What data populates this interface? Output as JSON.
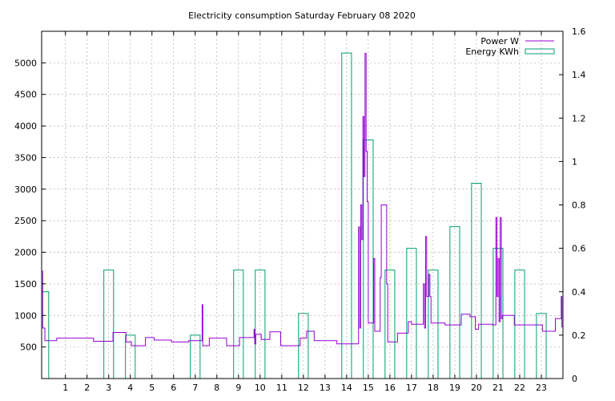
{
  "chart_data": {
    "type": "line",
    "title": "Electricity consumption Saturday February 08 2020",
    "xlim": [
      -0.1,
      24
    ],
    "x_ticks": [
      1,
      2,
      3,
      4,
      5,
      6,
      7,
      8,
      9,
      10,
      11,
      12,
      13,
      14,
      15,
      16,
      17,
      18,
      19,
      20,
      21,
      22,
      23
    ],
    "y1": {
      "lim": [
        0,
        5500
      ],
      "ticks": [
        500,
        1000,
        1500,
        2000,
        2500,
        3000,
        3500,
        4000,
        4500,
        5000
      ]
    },
    "y2": {
      "lim": [
        0,
        1.6
      ],
      "ticks": [
        "0",
        "0.2",
        "0.4",
        "0.6",
        "0.8",
        "1",
        "1.2",
        "1.4",
        "1.6"
      ]
    },
    "grid": true,
    "legend": "top-right",
    "series": [
      {
        "name": "Power W",
        "axis": "y1",
        "color": "#9400d3",
        "style": "steps",
        "points": [
          [
            -0.1,
            1700
          ],
          [
            -0.05,
            800
          ],
          [
            0,
            800
          ],
          [
            0.05,
            600
          ],
          [
            0.5,
            600
          ],
          [
            0.6,
            640
          ],
          [
            2.2,
            640
          ],
          [
            2.3,
            590
          ],
          [
            3.1,
            590
          ],
          [
            3.2,
            730
          ],
          [
            3.7,
            730
          ],
          [
            3.8,
            580
          ],
          [
            4.0,
            580
          ],
          [
            4.05,
            520
          ],
          [
            4.6,
            520
          ],
          [
            4.7,
            650
          ],
          [
            5.0,
            650
          ],
          [
            5.1,
            610
          ],
          [
            5.8,
            610
          ],
          [
            5.9,
            580
          ],
          [
            6.6,
            580
          ],
          [
            6.7,
            600
          ],
          [
            7.3,
            600
          ],
          [
            7.32,
            1170
          ],
          [
            7.35,
            520
          ],
          [
            7.6,
            520
          ],
          [
            7.65,
            640
          ],
          [
            8.4,
            640
          ],
          [
            8.45,
            520
          ],
          [
            9.0,
            520
          ],
          [
            9.05,
            650
          ],
          [
            9.7,
            650
          ],
          [
            9.72,
            780
          ],
          [
            9.75,
            550
          ],
          [
            9.8,
            700
          ],
          [
            10.0,
            700
          ],
          [
            10.05,
            620
          ],
          [
            10.4,
            620
          ],
          [
            10.45,
            740
          ],
          [
            10.9,
            740
          ],
          [
            10.95,
            520
          ],
          [
            11.8,
            520
          ],
          [
            11.85,
            640
          ],
          [
            12.1,
            640
          ],
          [
            12.15,
            750
          ],
          [
            12.45,
            750
          ],
          [
            12.5,
            600
          ],
          [
            13.5,
            600
          ],
          [
            13.55,
            550
          ],
          [
            14.5,
            550
          ],
          [
            14.55,
            2400
          ],
          [
            14.6,
            800
          ],
          [
            14.65,
            2750
          ],
          [
            14.7,
            2200
          ],
          [
            14.75,
            4150
          ],
          [
            14.8,
            3200
          ],
          [
            14.85,
            5150
          ],
          [
            14.9,
            3600
          ],
          [
            14.95,
            2800
          ],
          [
            15.0,
            880
          ],
          [
            15.2,
            880
          ],
          [
            15.25,
            1900
          ],
          [
            15.3,
            750
          ],
          [
            15.5,
            750
          ],
          [
            15.55,
            1600
          ],
          [
            15.6,
            2750
          ],
          [
            15.8,
            2750
          ],
          [
            15.85,
            1500
          ],
          [
            15.9,
            580
          ],
          [
            16.3,
            580
          ],
          [
            16.35,
            720
          ],
          [
            16.8,
            720
          ],
          [
            16.85,
            900
          ],
          [
            17.0,
            860
          ],
          [
            17.5,
            860
          ],
          [
            17.55,
            1500
          ],
          [
            17.6,
            800
          ],
          [
            17.65,
            2250
          ],
          [
            17.7,
            1300
          ],
          [
            17.8,
            1650
          ],
          [
            17.85,
            1300
          ],
          [
            17.9,
            880
          ],
          [
            18.5,
            880
          ],
          [
            18.55,
            850
          ],
          [
            19.2,
            850
          ],
          [
            19.3,
            1020
          ],
          [
            19.6,
            1020
          ],
          [
            19.7,
            980
          ],
          [
            19.9,
            980
          ],
          [
            19.95,
            780
          ],
          [
            20.0,
            780
          ],
          [
            20.1,
            860
          ],
          [
            20.7,
            860
          ],
          [
            20.75,
            850
          ],
          [
            20.85,
            850
          ],
          [
            20.9,
            2550
          ],
          [
            20.95,
            1300
          ],
          [
            21.0,
            1900
          ],
          [
            21.05,
            900
          ],
          [
            21.1,
            2550
          ],
          [
            21.15,
            950
          ],
          [
            21.2,
            1000
          ],
          [
            21.7,
            1000
          ],
          [
            21.75,
            850
          ],
          [
            23.0,
            850
          ],
          [
            23.05,
            750
          ],
          [
            23.6,
            750
          ],
          [
            23.65,
            950
          ],
          [
            23.9,
            950
          ],
          [
            23.92,
            1300
          ],
          [
            23.95,
            820
          ],
          [
            24,
            820
          ]
        ]
      },
      {
        "name": "Energy KWh",
        "axis": "y2",
        "color": "#009e73",
        "style": "bars",
        "width": 0.45,
        "points": [
          [
            0,
            0.4
          ],
          [
            3,
            0.5
          ],
          [
            4,
            0.2
          ],
          [
            7,
            0.2
          ],
          [
            9,
            0.5
          ],
          [
            10,
            0.5
          ],
          [
            12,
            0.3
          ],
          [
            14,
            1.5
          ],
          [
            15,
            1.1
          ],
          [
            16,
            0.5
          ],
          [
            17,
            0.6
          ],
          [
            18,
            0.5
          ],
          [
            19,
            0.7
          ],
          [
            20,
            0.9
          ],
          [
            21,
            0.6
          ],
          [
            22,
            0.5
          ],
          [
            23,
            0.3
          ]
        ]
      }
    ]
  }
}
